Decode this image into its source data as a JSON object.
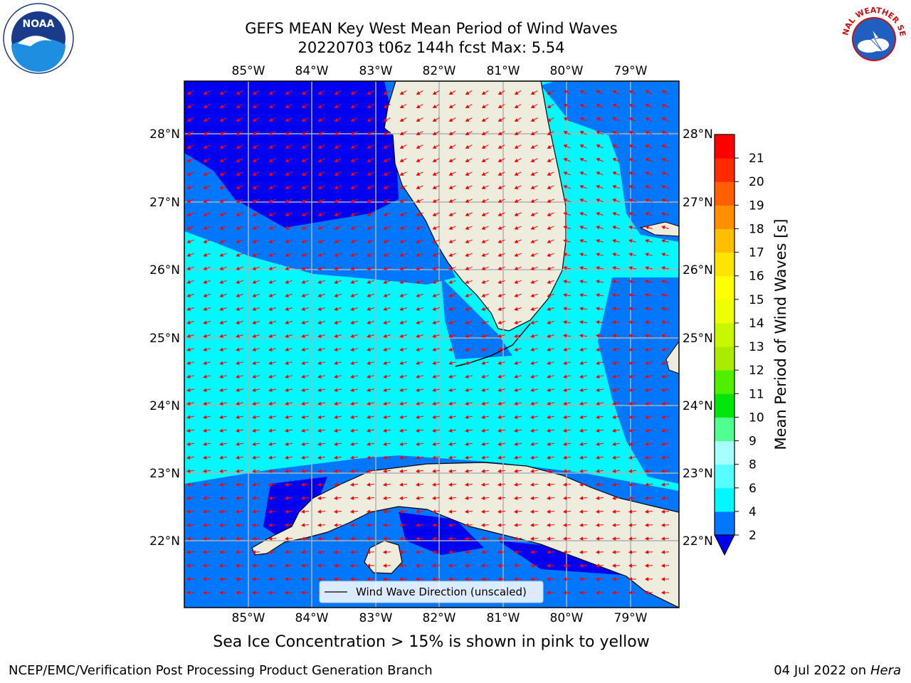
{
  "title": {
    "line1": "GEFS MEAN Key West Mean Period of Wind Waves",
    "line2": "20220703 t06z 144h fcst   Max: 5.54"
  },
  "map": {
    "lon_ticks": [
      "85°W",
      "84°W",
      "83°W",
      "82°W",
      "81°W",
      "80°W",
      "79°W"
    ],
    "lat_ticks": [
      "28°N",
      "27°N",
      "26°N",
      "25°N",
      "24°N",
      "23°N",
      "22°N"
    ],
    "legend_label": "Wind Wave Direction (unscaled)",
    "arrow_color": "#ff0000",
    "land_color": "#eeecdc"
  },
  "colorbar": {
    "label": "Mean Period of Wind Waves [s]",
    "ticks": [
      "2",
      "4",
      "6",
      "8",
      "9",
      "10",
      "11",
      "12",
      "13",
      "14",
      "15",
      "16",
      "17",
      "18",
      "19",
      "20",
      "21"
    ],
    "under_color": "#0000f0",
    "colors": [
      "#0077ff",
      "#00f8ff",
      "#56ffff",
      "#a6ffff",
      "#4fff8f",
      "#00e60c",
      "#4fef00",
      "#aaeb00",
      "#c8f800",
      "#eeff00",
      "#ffff00",
      "#ffe400",
      "#ffbe00",
      "#ff8e00",
      "#ff5f00",
      "#ff2b00",
      "#ff0000"
    ]
  },
  "ice_note": "Sea Ice Concentration > 15% is shown in pink to yellow",
  "footer": {
    "left": "NCEP/EMC/Verification Post Processing Product Generation Branch",
    "right_date": "04 Jul 2022 on ",
    "right_host": "Hera"
  },
  "logos": {
    "noaa_text": "NOAA",
    "nws_text": "NATIONAL WEATHER SERVICE"
  }
}
